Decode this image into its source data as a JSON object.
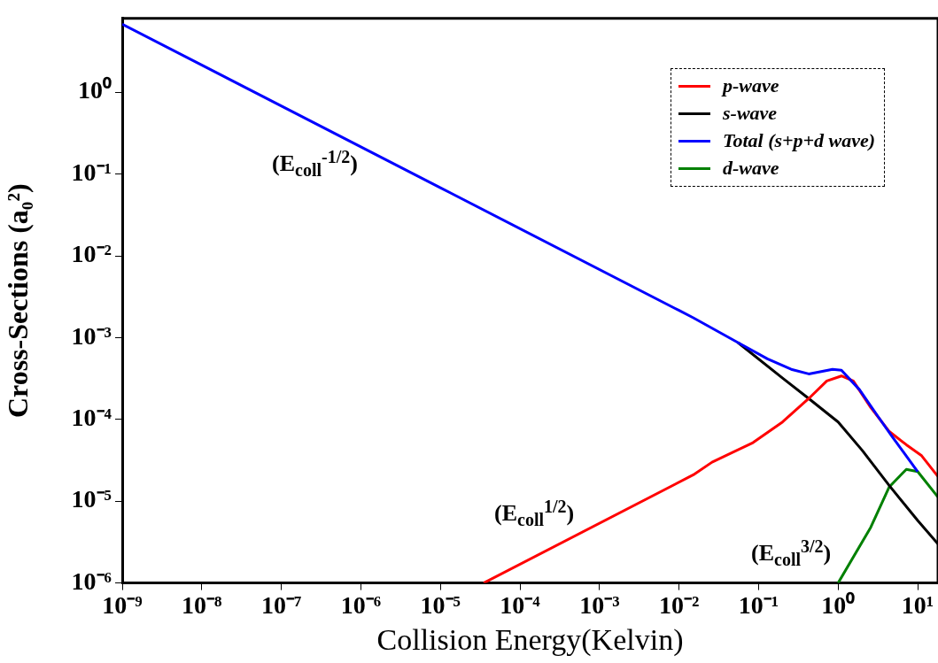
{
  "chart_data": {
    "type": "line",
    "xlabel": "Collision Energy(Kelvin)",
    "ylabel": "Cross-Sections (a₀²)",
    "log": "xy",
    "xlim": [
      1e-09,
      18
    ],
    "ylim": [
      1e-06,
      8
    ],
    "xticks": [
      {
        "value": 1e-09,
        "label": "10⁻⁹"
      },
      {
        "value": 1e-08,
        "label": "10⁻⁸"
      },
      {
        "value": 1e-07,
        "label": "10⁻⁷"
      },
      {
        "value": 1e-06,
        "label": "10⁻⁶"
      },
      {
        "value": 1e-05,
        "label": "10⁻⁵"
      },
      {
        "value": 0.0001,
        "label": "10⁻⁴"
      },
      {
        "value": 0.001,
        "label": "10⁻³"
      },
      {
        "value": 0.01,
        "label": "10⁻²"
      },
      {
        "value": 0.1,
        "label": "10⁻¹"
      },
      {
        "value": 1,
        "label": "10⁰"
      },
      {
        "value": 10,
        "label": "10¹"
      }
    ],
    "yticks": [
      {
        "value": 1e-06,
        "label": "10⁻⁶"
      },
      {
        "value": 1e-05,
        "label": "10⁻⁵"
      },
      {
        "value": 0.0001,
        "label": "10⁻⁴"
      },
      {
        "value": 0.001,
        "label": "10⁻³"
      },
      {
        "value": 0.01,
        "label": "10⁻²"
      },
      {
        "value": 0.1,
        "label": "10⁻¹"
      },
      {
        "value": 1,
        "label": "10⁰"
      }
    ],
    "grid": false,
    "legend": "top right",
    "series": [
      {
        "name": "p-wave",
        "color": "#ff0000",
        "x": [
          3.5e-05,
          0.0151,
          0.026,
          0.085,
          0.2,
          0.427,
          0.72,
          1.1,
          1.55,
          2.57,
          4.4,
          7.2,
          11.2,
          18
        ],
        "values": [
          1e-06,
          2.1e-05,
          3e-05,
          5.2e-05,
          9.3e-05,
          0.00018,
          0.000295,
          0.00034,
          0.000295,
          0.00014,
          7.1e-05,
          4.9e-05,
          3.6e-05,
          2e-05
        ]
      },
      {
        "name": "s-wave",
        "color": "#000000",
        "x": [
          0.055,
          0.2,
          0.427,
          1,
          2,
          4.4,
          10,
          18
        ],
        "values": [
          0.00087,
          0.00032,
          0.00018,
          9.3e-05,
          4.2e-05,
          1.55e-05,
          5.8e-06,
          3e-06
        ]
      },
      {
        "name": "Total (s+p+d wave)",
        "color": "#0000ff",
        "x": [
          1e-09,
          1e-05,
          0.01,
          0.0151,
          0.055,
          0.129,
          0.257,
          0.427,
          0.85,
          1.1,
          1.86,
          3.1,
          4.7,
          10
        ],
        "values": [
          6.8,
          0.068,
          0.00215,
          0.00175,
          0.00087,
          0.00055,
          0.00041,
          0.00036,
          0.00041,
          0.0004,
          0.00023,
          0.000112,
          6.3e-05,
          2.3e-05
        ]
      },
      {
        "name": "d-wave",
        "color": "#008000",
        "x": [
          1,
          2.57,
          4.4,
          7.2,
          10,
          18
        ],
        "values": [
          1e-06,
          4.8e-06,
          1.5e-05,
          2.45e-05,
          2.3e-05,
          1.12e-05
        ]
      }
    ],
    "annotations": [
      "(E$_{coll}$$^{-1/2}$)",
      "(E$_{coll}$$^{1/2}$)",
      "(E$_{coll}$$^{3/2}$)"
    ]
  }
}
